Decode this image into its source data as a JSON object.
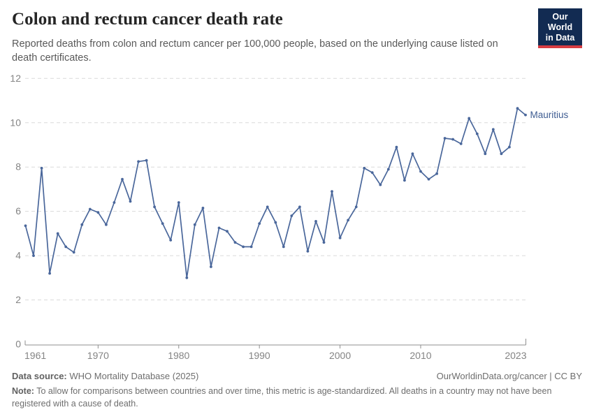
{
  "header": {
    "title": "Colon and rectum cancer death rate",
    "subtitle": "Reported deaths from colon and rectum cancer per 100,000 people, based on the underlying cause listed on death certificates.",
    "logo_line1": "Our World",
    "logo_line2": "in Data",
    "logo_bg_color": "#122b52",
    "logo_accent_color": "#d73c42"
  },
  "footer": {
    "data_source_label": "Data source:",
    "data_source_text": "WHO Mortality Database (2025)",
    "attribution": "OurWorldinData.org/cancer | CC BY",
    "note_label": "Note:",
    "note_text": "To allow for comparisons between countries and over time, this metric is age-standardized. All deaths in a country may not have been registered with a cause of death."
  },
  "chart_data": {
    "type": "line",
    "title": "Colon and rectum cancer death rate",
    "xlabel": "",
    "ylabel": "",
    "ylim": [
      0,
      12
    ],
    "yticks": [
      0,
      2,
      4,
      6,
      8,
      10,
      12
    ],
    "xticks": [
      1961,
      1970,
      1980,
      1990,
      2000,
      2010,
      2023
    ],
    "grid": "horizontal-dashed",
    "legend_position": "end-of-line-label",
    "colors": {
      "line": "#4a679b",
      "entity_label": "#3f5d92",
      "grid": "#dadada",
      "axis": "#8f8f8f",
      "tick_text": "#848484"
    },
    "series": [
      {
        "name": "Mauritius",
        "x": [
          1961,
          1962,
          1963,
          1964,
          1965,
          1966,
          1967,
          1968,
          1969,
          1970,
          1971,
          1972,
          1973,
          1974,
          1975,
          1976,
          1977,
          1978,
          1979,
          1980,
          1981,
          1982,
          1983,
          1984,
          1985,
          1986,
          1987,
          1988,
          1989,
          1990,
          1991,
          1992,
          1993,
          1994,
          1995,
          1996,
          1997,
          1998,
          1999,
          2000,
          2001,
          2002,
          2003,
          2004,
          2005,
          2006,
          2007,
          2008,
          2009,
          2010,
          2011,
          2012,
          2013,
          2014,
          2015,
          2016,
          2017,
          2018,
          2019,
          2020,
          2021,
          2022,
          2023
        ],
        "values": [
          5.35,
          4.0,
          7.95,
          3.2,
          5.0,
          4.4,
          4.15,
          5.4,
          6.1,
          5.95,
          5.4,
          6.4,
          7.45,
          6.45,
          8.25,
          8.3,
          6.2,
          5.45,
          4.7,
          6.4,
          3.0,
          5.4,
          6.15,
          3.5,
          5.25,
          5.1,
          4.6,
          4.4,
          4.4,
          5.45,
          6.2,
          5.5,
          4.4,
          5.8,
          6.2,
          4.2,
          5.55,
          4.6,
          6.9,
          4.8,
          5.6,
          6.2,
          7.95,
          7.75,
          7.2,
          7.9,
          8.9,
          7.4,
          8.6,
          7.8,
          7.45,
          7.7,
          9.3,
          9.25,
          9.05,
          10.2,
          9.5,
          8.6,
          9.7,
          8.6,
          8.9,
          10.65,
          10.35
        ]
      }
    ]
  }
}
